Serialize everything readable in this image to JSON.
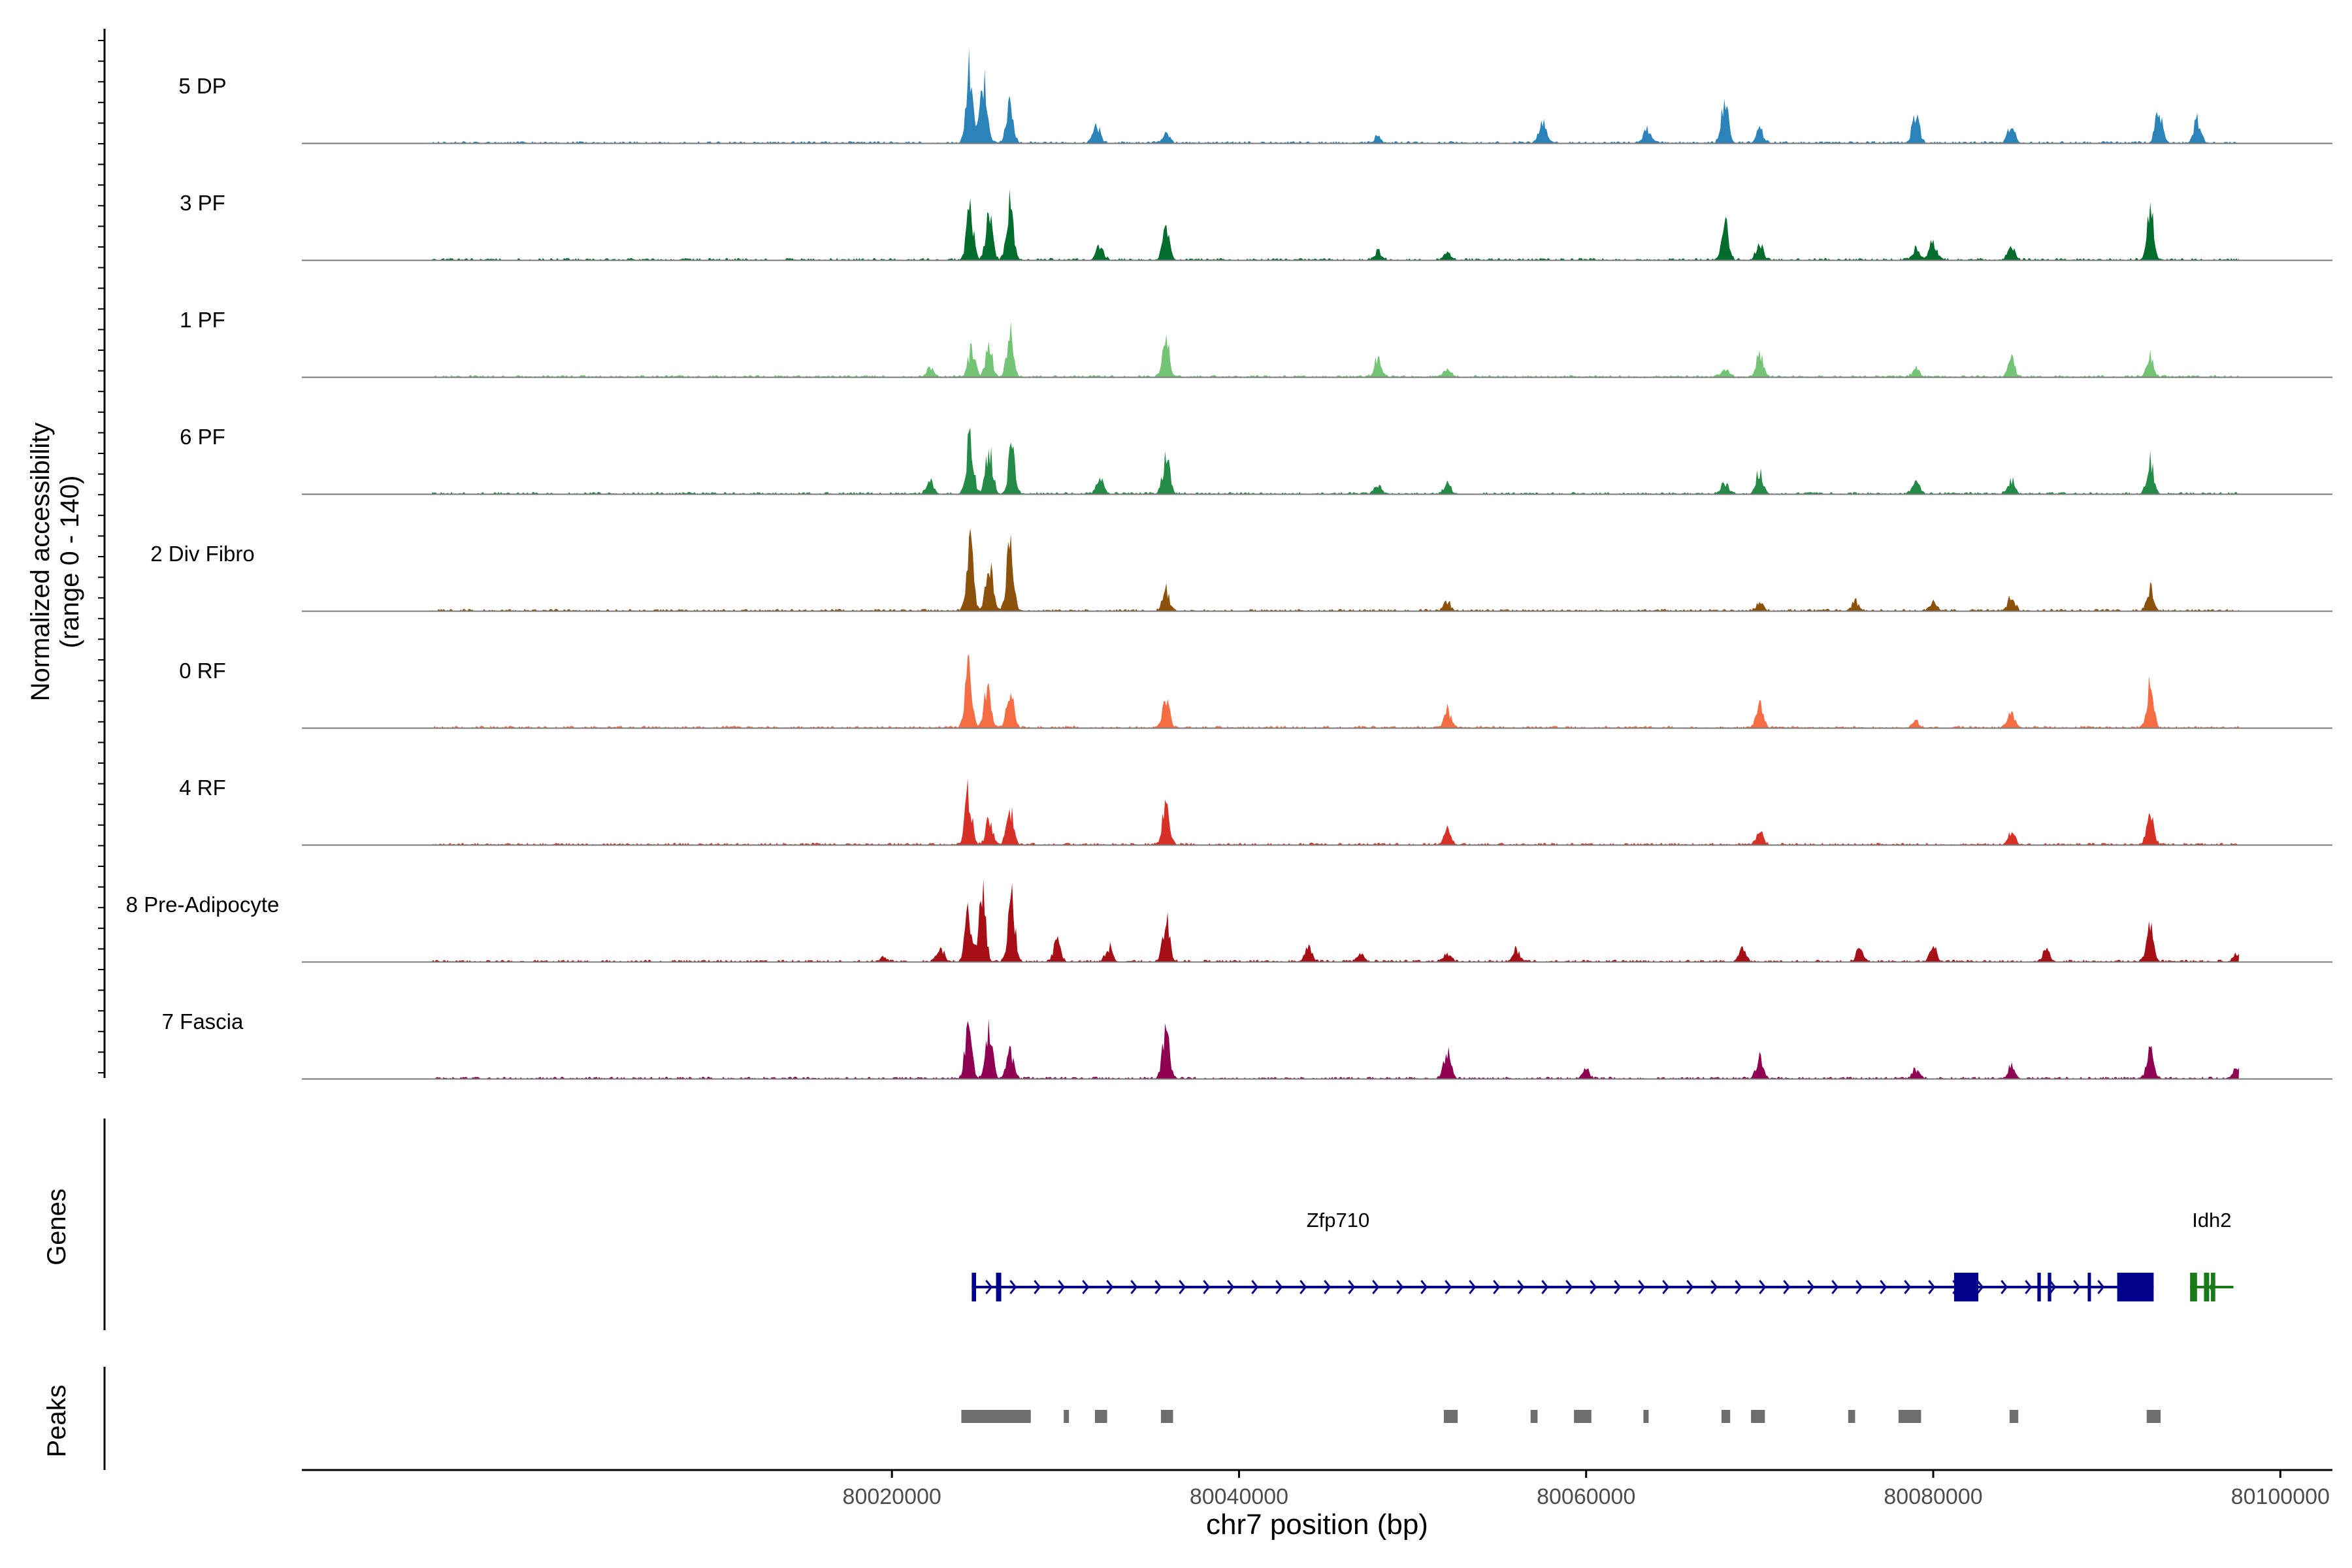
{
  "chart_data": {
    "type": "area",
    "xlabel": "chr7 position (bp)",
    "ylabel_line1": "Normalized accessibility",
    "ylabel_line2": "(range 0 - 140)",
    "y_range": [
      0,
      140
    ],
    "xlim": [
      79986000,
      80103000
    ],
    "track_range": [
      79993500,
      80097600
    ],
    "x_ticks": [
      80020000,
      80040000,
      80060000,
      80080000,
      80100000
    ],
    "x_tick_labels": [
      "80020000",
      "80040000",
      "80060000",
      "80080000",
      "80100000"
    ],
    "series": [
      {
        "name": "5 DP",
        "color": "#2b83ba",
        "peaks": [
          [
            80024500,
            130
          ],
          [
            80025300,
            105
          ],
          [
            80026800,
            70
          ],
          [
            80031800,
            30
          ],
          [
            80035800,
            15
          ],
          [
            80048000,
            10
          ],
          [
            80057500,
            35
          ],
          [
            80063500,
            25
          ],
          [
            80068000,
            70
          ],
          [
            80070000,
            25
          ],
          [
            80079000,
            50
          ],
          [
            80084500,
            35
          ],
          [
            80093000,
            55
          ],
          [
            80095200,
            40
          ]
        ]
      },
      {
        "name": "3 PF",
        "color": "#006d2c",
        "peaks": [
          [
            80024500,
            85
          ],
          [
            80025600,
            75
          ],
          [
            80026800,
            90
          ],
          [
            80032000,
            25
          ],
          [
            80035800,
            55
          ],
          [
            80048000,
            15
          ],
          [
            80052000,
            12
          ],
          [
            80068000,
            65
          ],
          [
            80070000,
            30
          ],
          [
            80079000,
            20
          ],
          [
            80080000,
            30
          ],
          [
            80084500,
            20
          ],
          [
            80092500,
            85
          ]
        ]
      },
      {
        "name": "1 PF",
        "color": "#74c476",
        "peaks": [
          [
            80022200,
            15
          ],
          [
            80024600,
            50
          ],
          [
            80025600,
            55
          ],
          [
            80026800,
            75
          ],
          [
            80035800,
            60
          ],
          [
            80048000,
            35
          ],
          [
            80052000,
            15
          ],
          [
            80068000,
            15
          ],
          [
            80070000,
            35
          ],
          [
            80079000,
            15
          ],
          [
            80084500,
            30
          ],
          [
            80092500,
            35
          ]
        ]
      },
      {
        "name": "6 PF",
        "color": "#238b45",
        "peaks": [
          [
            80022200,
            20
          ],
          [
            80024500,
            95
          ],
          [
            80025600,
            80
          ],
          [
            80026900,
            70
          ],
          [
            80032000,
            30
          ],
          [
            80035800,
            65
          ],
          [
            80048000,
            15
          ],
          [
            80052000,
            18
          ],
          [
            80068000,
            20
          ],
          [
            80070000,
            40
          ],
          [
            80079000,
            20
          ],
          [
            80084500,
            25
          ],
          [
            80092500,
            60
          ]
        ]
      },
      {
        "name": "2 Div Fibro",
        "color": "#8c510a",
        "peaks": [
          [
            80024500,
            110
          ],
          [
            80025600,
            85
          ],
          [
            80026800,
            110
          ],
          [
            80035800,
            35
          ],
          [
            80052000,
            15
          ],
          [
            80070000,
            15
          ],
          [
            80075500,
            15
          ],
          [
            80080000,
            15
          ],
          [
            80084500,
            25
          ],
          [
            80092500,
            40
          ]
        ]
      },
      {
        "name": "0 RF",
        "color": "#f46d43",
        "peaks": [
          [
            80024400,
            100
          ],
          [
            80025500,
            60
          ],
          [
            80026800,
            65
          ],
          [
            80035800,
            45
          ],
          [
            80052000,
            30
          ],
          [
            80070000,
            40
          ],
          [
            80079000,
            10
          ],
          [
            80084500,
            25
          ],
          [
            80092500,
            70
          ]
        ]
      },
      {
        "name": "4 RF",
        "color": "#d73027",
        "peaks": [
          [
            80024400,
            90
          ],
          [
            80025600,
            40
          ],
          [
            80026800,
            65
          ],
          [
            80035800,
            70
          ],
          [
            80052000,
            25
          ],
          [
            80070000,
            25
          ],
          [
            80084500,
            20
          ],
          [
            80092500,
            55
          ]
        ]
      },
      {
        "name": "8 Pre-Adipocyte",
        "color": "#a50f15",
        "peaks": [
          [
            80019500,
            8
          ],
          [
            80022800,
            25
          ],
          [
            80024400,
            80
          ],
          [
            80025200,
            110
          ],
          [
            80026900,
            100
          ],
          [
            80029500,
            35
          ],
          [
            80032500,
            25
          ],
          [
            80035800,
            70
          ],
          [
            80044000,
            25
          ],
          [
            80047000,
            15
          ],
          [
            80052000,
            15
          ],
          [
            80056000,
            20
          ],
          [
            80069000,
            20
          ],
          [
            80075800,
            25
          ],
          [
            80080000,
            25
          ],
          [
            80086500,
            20
          ],
          [
            80092500,
            55
          ],
          [
            80097500,
            15
          ]
        ]
      },
      {
        "name": "7 Fascia",
        "color": "#8e0152",
        "peaks": [
          [
            80024400,
            90
          ],
          [
            80025600,
            80
          ],
          [
            80026800,
            45
          ],
          [
            80035800,
            80
          ],
          [
            80052000,
            50
          ],
          [
            80060000,
            15
          ],
          [
            80070000,
            35
          ],
          [
            80079000,
            15
          ],
          [
            80084500,
            20
          ],
          [
            80092500,
            45
          ],
          [
            80097500,
            20
          ]
        ]
      }
    ],
    "genes_label": "Genes",
    "genes": [
      {
        "name": "Zfp710",
        "start": 80024600,
        "end": 80092700,
        "strand": "+",
        "color": "#00008b",
        "exons": [
          [
            80024600,
            80024850
          ],
          [
            80026000,
            80026300
          ],
          [
            80081200,
            80082600
          ],
          [
            80086000,
            80086200
          ],
          [
            80086600,
            80086800
          ],
          [
            80088900,
            80089050
          ],
          [
            80090600,
            80092700
          ]
        ]
      },
      {
        "name": "Idh2",
        "start": 80094800,
        "end": 80097300,
        "strand": "-",
        "color": "#1a7a1a",
        "exons": [
          [
            80094800,
            80095200
          ],
          [
            80095600,
            80095900
          ],
          [
            80096000,
            80096250
          ]
        ]
      }
    ],
    "peaks_label": "Peaks",
    "peaks": [
      [
        80024000,
        80028000
      ],
      [
        80029900,
        80030200
      ],
      [
        80031700,
        80032400
      ],
      [
        80035500,
        80036200
      ],
      [
        80051800,
        80052600
      ],
      [
        80056800,
        80057200
      ],
      [
        80059300,
        80060300
      ],
      [
        80063300,
        80063600
      ],
      [
        80067800,
        80068300
      ],
      [
        80069500,
        80070300
      ],
      [
        80075100,
        80075500
      ],
      [
        80078000,
        80079300
      ],
      [
        80084400,
        80084900
      ],
      [
        80092300,
        80093100
      ]
    ]
  }
}
